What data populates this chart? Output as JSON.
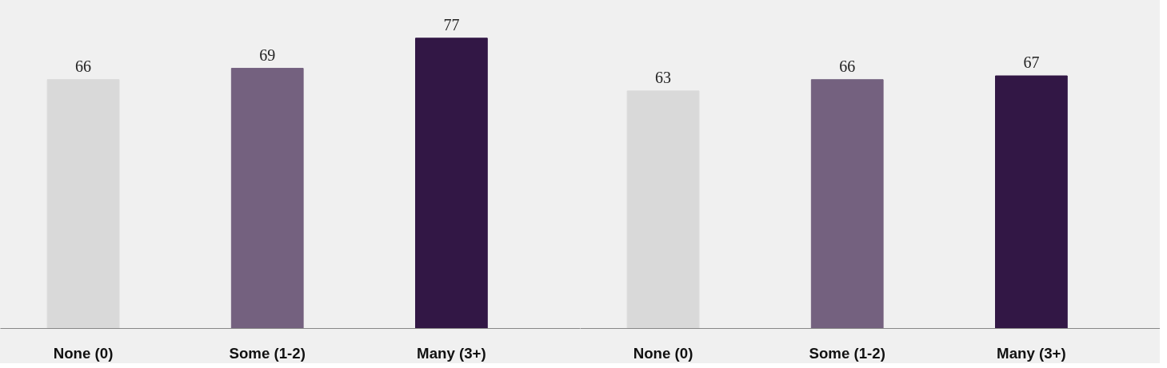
{
  "chart_data": [
    {
      "type": "bar",
      "categories": [
        "None (0)",
        "Some (1-2)",
        "Many (3+)"
      ],
      "values": [
        66,
        69,
        77
      ],
      "colors": [
        "#d9d9d9",
        "#74617f",
        "#321745"
      ],
      "data_labels": true,
      "tick_labels": "x"
    },
    {
      "type": "bar",
      "categories": [
        "None (0)",
        "Some (1-2)",
        "Many (3+)"
      ],
      "values": [
        63,
        66,
        67
      ],
      "colors": [
        "#d9d9d9",
        "#74617f",
        "#321745"
      ],
      "data_labels": true,
      "tick_labels": "x"
    }
  ]
}
